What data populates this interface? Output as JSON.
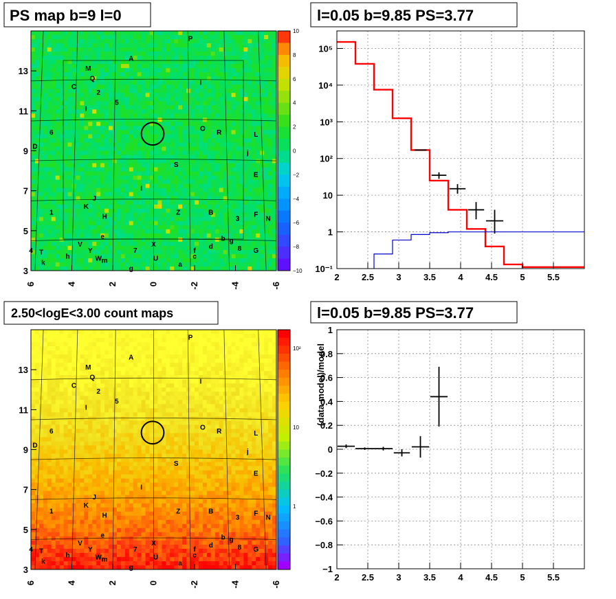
{
  "titles": {
    "ps_map": "PS map b=9 l=0",
    "spectrum": "l=0.05 b=9.85 PS=3.77",
    "count_maps": "2.50<logE<3.00 count maps",
    "residual": "l=0.05 b=9.85 PS=3.77"
  },
  "map_axes": {
    "x_ticks": [
      "6",
      "4",
      "2",
      "0",
      "-2",
      "-4",
      "-6"
    ],
    "y_ticks": [
      "13",
      "11",
      "9",
      "7",
      "5",
      "3"
    ]
  },
  "ps_colorbar_ticks": [
    "10",
    "8",
    "6",
    "4",
    "2",
    "0",
    "-2",
    "-4",
    "-6",
    "-8",
    "-10"
  ],
  "count_colorbar_ticks": [
    "10²",
    "10",
    "1"
  ],
  "sources": [
    {
      "label": "P",
      "l": -1.8,
      "b": 14.5
    },
    {
      "label": "A",
      "l": 1.1,
      "b": 13.5
    },
    {
      "label": "M",
      "l": 3.2,
      "b": 13.0
    },
    {
      "label": "Q",
      "l": 3.0,
      "b": 12.5
    },
    {
      "label": "C",
      "l": 3.9,
      "b": 12.1
    },
    {
      "label": "2",
      "l": 2.7,
      "b": 11.8
    },
    {
      "label": "I",
      "l": -2.3,
      "b": 12.3
    },
    {
      "label": "5",
      "l": 1.8,
      "b": 11.3
    },
    {
      "label": "I",
      "l": 3.3,
      "b": 11.0
    },
    {
      "label": "O",
      "l": -2.4,
      "b": 10.0
    },
    {
      "label": "R",
      "l": -3.2,
      "b": 9.8
    },
    {
      "label": "L",
      "l": -5.0,
      "b": 9.7
    },
    {
      "label": "6",
      "l": 5.0,
      "b": 9.8
    },
    {
      "label": "D",
      "l": 5.8,
      "b": 9.1
    },
    {
      "label": "j",
      "l": -4.6,
      "b": 8.8
    },
    {
      "label": "S",
      "l": -1.1,
      "b": 8.2
    },
    {
      "label": "E",
      "l": -5.0,
      "b": 7.7
    },
    {
      "label": "I",
      "l": 0.6,
      "b": 7.0
    },
    {
      "label": "J",
      "l": 2.9,
      "b": 6.5
    },
    {
      "label": "K",
      "l": 3.3,
      "b": 6.1
    },
    {
      "label": "1",
      "l": 5.0,
      "b": 5.8
    },
    {
      "label": "H",
      "l": 2.4,
      "b": 5.6
    },
    {
      "label": "Z",
      "l": -1.2,
      "b": 5.8
    },
    {
      "label": "B",
      "l": -2.8,
      "b": 5.8
    },
    {
      "label": "3",
      "l": -4.1,
      "b": 5.5
    },
    {
      "label": "F",
      "l": -5.0,
      "b": 5.7
    },
    {
      "label": "N",
      "l": -5.6,
      "b": 5.5
    },
    {
      "label": "e",
      "l": 2.5,
      "b": 4.6
    },
    {
      "label": "V",
      "l": 3.6,
      "b": 4.2
    },
    {
      "label": "Y",
      "l": 3.1,
      "b": 3.9
    },
    {
      "label": "W",
      "l": 2.7,
      "b": 3.5
    },
    {
      "label": "m",
      "l": 2.4,
      "b": 3.4
    },
    {
      "label": "7",
      "l": 0.9,
      "b": 3.9
    },
    {
      "label": "X",
      "l": 0.0,
      "b": 4.2
    },
    {
      "label": "U",
      "l": -0.1,
      "b": 3.5
    },
    {
      "label": "g",
      "l": 1.1,
      "b": 3.0
    },
    {
      "label": "a",
      "l": -1.3,
      "b": 3.2
    },
    {
      "label": "f",
      "l": -2.0,
      "b": 3.9
    },
    {
      "label": "c",
      "l": -2.0,
      "b": 3.6
    },
    {
      "label": "d",
      "l": -2.8,
      "b": 4.1
    },
    {
      "label": "b",
      "l": -3.4,
      "b": 4.5
    },
    {
      "label": "g",
      "l": -3.8,
      "b": 4.4
    },
    {
      "label": "8",
      "l": -4.2,
      "b": 4.0
    },
    {
      "label": "G",
      "l": -5.0,
      "b": 3.9
    },
    {
      "label": "4",
      "l": 6.0,
      "b": 3.9
    },
    {
      "label": "T",
      "l": 5.5,
      "b": 3.8
    },
    {
      "label": "h",
      "l": 4.2,
      "b": 3.6
    },
    {
      "label": "k",
      "l": 5.4,
      "b": 3.3
    }
  ],
  "circle_marker": {
    "l": 0.05,
    "b": 9.85,
    "radius_deg": 0.55
  },
  "chart_data": [
    {
      "type": "heatmap",
      "title": "PS map b=9 l=0",
      "xlim": [
        6.0,
        -6.0
      ],
      "ylim": [
        3.0,
        15.0
      ],
      "zlim": [
        -10,
        10
      ],
      "x_ticks": [
        6,
        4,
        2,
        0,
        -2,
        -4,
        -6
      ],
      "y_ticks": [
        3,
        5,
        7,
        9,
        11,
        13
      ],
      "description_value": "TS map values mostly 0-2"
    },
    {
      "type": "line",
      "title": "l=0.05 b=9.85 PS=3.77",
      "log_y": true,
      "xlim": [
        2.0,
        6.0
      ],
      "ylim": [
        0.1,
        300000
      ],
      "x_ticks": [
        "2",
        "2.5",
        "3",
        "3.5",
        "4",
        "4.5",
        "5",
        "5.5"
      ],
      "y_ticks": [
        "10⁻¹",
        "1",
        "10",
        "10²",
        "10³",
        "10⁴",
        "10⁵"
      ],
      "grid": true,
      "series": [
        {
          "color": "#ff0000",
          "edges": [
            2.0,
            2.3,
            2.6,
            2.9,
            3.2,
            3.5,
            3.8,
            4.1,
            4.4,
            4.7,
            5.0,
            6.0
          ],
          "values": [
            150000,
            38000,
            7500,
            1250,
            170,
            25,
            4,
            1.2,
            0.4,
            0.13,
            0.11
          ]
        },
        {
          "color": "#0000cc",
          "edges": [
            2.6,
            2.9,
            3.2,
            3.5,
            3.8,
            4.1,
            4.4,
            4.7,
            5.0,
            6.0
          ],
          "values": [
            0.25,
            0.6,
            0.85,
            0.95,
            1.0,
            1.0,
            1.0,
            1.0,
            1.0
          ]
        },
        {
          "color": "#000000",
          "points": [
            {
              "x": 3.35,
              "y": 170,
              "xerr": 0.1,
              "ylo": 165,
              "yhi": 175
            },
            {
              "x": 3.65,
              "y": 35,
              "xerr": 0.12,
              "ylo": 28,
              "yhi": 42
            },
            {
              "x": 3.95,
              "y": 15,
              "xerr": 0.13,
              "ylo": 11,
              "yhi": 20
            },
            {
              "x": 4.25,
              "y": 4,
              "xerr": 0.13,
              "ylo": 2.2,
              "yhi": 6.5
            },
            {
              "x": 4.55,
              "y": 2,
              "xerr": 0.14,
              "ylo": 0.9,
              "yhi": 4
            }
          ]
        }
      ]
    },
    {
      "type": "heatmap",
      "title": "2.50<logE<3.00 count maps",
      "xlim": [
        6.0,
        -6.0
      ],
      "ylim": [
        3.0,
        15.0
      ],
      "log_z": true,
      "zlim": [
        0.2,
        200
      ],
      "x_ticks": [
        6,
        4,
        2,
        0,
        -2,
        -4,
        -6
      ],
      "y_ticks": [
        3,
        5,
        7,
        9,
        11,
        13
      ]
    },
    {
      "type": "scatter",
      "title": "l=0.05 b=9.85 PS=3.77",
      "ylabel": "(data-model)/model",
      "xlim": [
        2.0,
        6.0
      ],
      "ylim": [
        -1.0,
        1.0
      ],
      "x_ticks": [
        "2",
        "2.5",
        "3",
        "3.5",
        "4",
        "4.5",
        "5",
        "5.5"
      ],
      "y_ticks": [
        "1",
        "0.8",
        "0.6",
        "0.4",
        "0.2",
        "0",
        "−0.2",
        "−0.4",
        "−0.6",
        "−0.8",
        "−1"
      ],
      "grid": true,
      "points": [
        {
          "x": 2.15,
          "y": 0.025,
          "xerr": 0.14,
          "yerr": 0.015
        },
        {
          "x": 2.45,
          "y": 0.005,
          "xerr": 0.15,
          "yerr": 0.01
        },
        {
          "x": 2.75,
          "y": 0.005,
          "xerr": 0.15,
          "yerr": 0.015
        },
        {
          "x": 3.05,
          "y": -0.03,
          "xerr": 0.13,
          "yerr": 0.03
        },
        {
          "x": 3.35,
          "y": 0.02,
          "xerr": 0.14,
          "yerr": 0.09
        },
        {
          "x": 3.65,
          "y": 0.44,
          "xerr": 0.14,
          "yerr": 0.25
        }
      ]
    }
  ]
}
